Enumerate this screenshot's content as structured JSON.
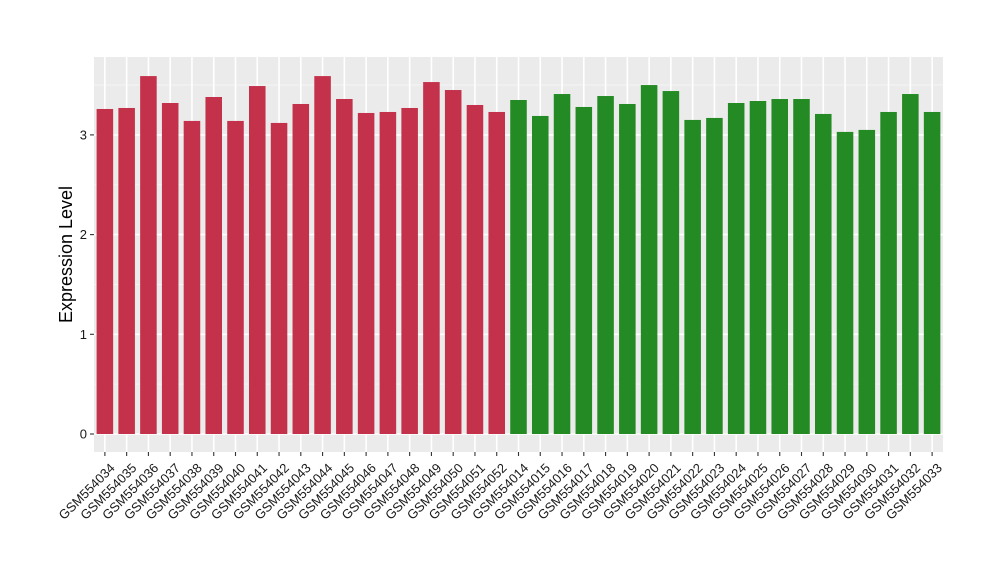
{
  "chart_data": {
    "type": "bar",
    "title": "",
    "xlabel": "",
    "ylabel": "Expression Level",
    "ylim": [
      0,
      3.65
    ],
    "yticks": [
      0,
      1,
      2,
      3
    ],
    "grid": true,
    "legend": "none",
    "categories": [
      "GSM554034",
      "GSM554035",
      "GSM554036",
      "GSM554037",
      "GSM554038",
      "GSM554039",
      "GSM554040",
      "GSM554041",
      "GSM554042",
      "GSM554043",
      "GSM554044",
      "GSM554045",
      "GSM554046",
      "GSM554047",
      "GSM554048",
      "GSM554049",
      "GSM554050",
      "GSM554051",
      "GSM554052",
      "GSM554014",
      "GSM554015",
      "GSM554016",
      "GSM554017",
      "GSM554018",
      "GSM554019",
      "GSM554020",
      "GSM554021",
      "GSM554022",
      "GSM554023",
      "GSM554024",
      "GSM554025",
      "GSM554026",
      "GSM554027",
      "GSM554028",
      "GSM554029",
      "GSM554030",
      "GSM554031",
      "GSM554032",
      "GSM554033"
    ],
    "values": [
      3.26,
      3.27,
      3.59,
      3.32,
      3.14,
      3.38,
      3.14,
      3.49,
      3.12,
      3.31,
      3.59,
      3.36,
      3.22,
      3.23,
      3.27,
      3.53,
      3.45,
      3.3,
      3.23,
      3.35,
      3.19,
      3.41,
      3.28,
      3.39,
      3.31,
      3.5,
      3.44,
      3.15,
      3.17,
      3.32,
      3.34,
      3.36,
      3.36,
      3.21,
      3.03,
      3.05,
      3.23,
      3.41,
      3.23
    ],
    "groups": [
      {
        "color": "#c3314a",
        "count": 19
      },
      {
        "color": "#248b24",
        "count": 20
      }
    ],
    "colors": {
      "panel_background": "#ebebeb",
      "grid_major": "#ffffff",
      "grid_minor": "#f4f4f4",
      "tick": "#333333"
    }
  }
}
